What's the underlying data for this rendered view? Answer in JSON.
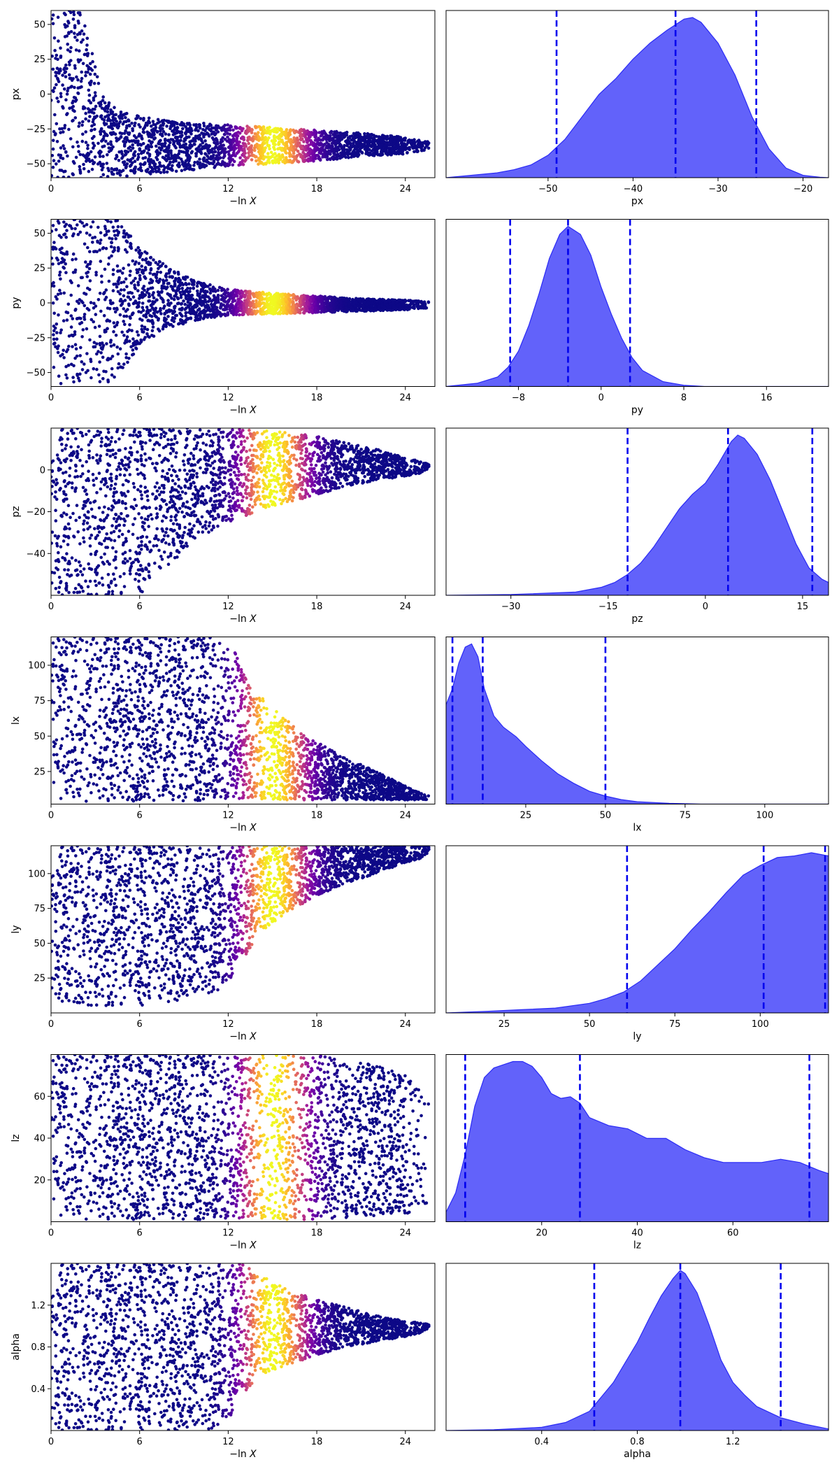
{
  "colors": {
    "trace_cmap": [
      "#0d0887",
      "#3b049a",
      "#6a00a8",
      "#9c179e",
      "#c43e7f",
      "#e16462",
      "#f89540",
      "#fdc527",
      "#f0f921"
    ],
    "kde_fill": "#5a5afa",
    "kde_line": "#2a2af5",
    "quantile_line": "#0000ee",
    "axis": "#000000"
  },
  "chart_data": [
    {
      "type": "scatter",
      "name": "trace-px",
      "xlabel": "−ln X",
      "ylabel": "px",
      "xlim": [
        0,
        26
      ],
      "ylim": [
        -60,
        60
      ],
      "xticks": [
        0,
        6,
        12,
        18,
        24
      ],
      "yticks": [
        -50,
        -25,
        0,
        25,
        50
      ],
      "color_scale": "plasma, peak importance near -lnX = 15",
      "envelope": [
        [
          0,
          -60,
          60
        ],
        [
          2,
          -60,
          60
        ],
        [
          2.8,
          -60,
          30
        ],
        [
          3.5,
          -60,
          0
        ],
        [
          4.5,
          -60,
          -12
        ],
        [
          6,
          -58,
          -16
        ],
        [
          9,
          -55,
          -20
        ],
        [
          12,
          -52,
          -22
        ],
        [
          15,
          -50,
          -24
        ],
        [
          18,
          -48,
          -26
        ],
        [
          21,
          -45,
          -28
        ],
        [
          24,
          -43,
          -31
        ],
        [
          25.5,
          -40,
          -34
        ]
      ]
    },
    {
      "type": "area",
      "name": "posterior-px",
      "xlabel": "px",
      "xlim": [
        -62,
        -17
      ],
      "xticks": [
        -50,
        -40,
        -30,
        -20
      ],
      "quantiles": [
        -49,
        -35,
        -25.5
      ],
      "x": [
        -62,
        -56,
        -54,
        -52,
        -50,
        -48,
        -46,
        -44,
        -42,
        -40,
        -38,
        -36,
        -34,
        -33,
        -32,
        -30,
        -28,
        -26,
        -24,
        -22,
        -20,
        -18,
        -17
      ],
      "density": [
        0,
        0.03,
        0.05,
        0.08,
        0.14,
        0.24,
        0.38,
        0.52,
        0.62,
        0.74,
        0.84,
        0.92,
        0.99,
        1.0,
        0.97,
        0.84,
        0.64,
        0.38,
        0.18,
        0.06,
        0.015,
        0.003,
        0
      ]
    },
    {
      "type": "scatter",
      "name": "trace-py",
      "xlabel": "−ln X",
      "ylabel": "py",
      "xlim": [
        0,
        26
      ],
      "ylim": [
        -60,
        60
      ],
      "xticks": [
        0,
        6,
        12,
        18,
        24
      ],
      "yticks": [
        -50,
        -25,
        0,
        25,
        50
      ],
      "color_scale": "plasma, peak importance near -lnX = 15",
      "envelope": [
        [
          0,
          -60,
          60
        ],
        [
          3,
          -60,
          60
        ],
        [
          4.5,
          -55,
          60
        ],
        [
          6,
          -30,
          40
        ],
        [
          8,
          -18,
          25
        ],
        [
          10,
          -12,
          15
        ],
        [
          12,
          -9,
          10
        ],
        [
          15,
          -8,
          7
        ],
        [
          18,
          -7,
          5
        ],
        [
          21,
          -6,
          3
        ],
        [
          24,
          -5,
          2
        ],
        [
          25.5,
          -4,
          1
        ]
      ]
    },
    {
      "type": "area",
      "name": "posterior-py",
      "xlabel": "py",
      "xlim": [
        -15,
        22
      ],
      "xticks": [
        -8,
        0,
        8,
        16
      ],
      "quantiles": [
        -8.8,
        -3.2,
        2.8
      ],
      "x": [
        -15,
        -12,
        -10,
        -9,
        -8,
        -7,
        -6,
        -5,
        -4,
        -3.2,
        -2,
        -1,
        0,
        1,
        2,
        3,
        4,
        6,
        8,
        10,
        22
      ],
      "density": [
        0,
        0.02,
        0.06,
        0.12,
        0.22,
        0.38,
        0.58,
        0.8,
        0.95,
        1.0,
        0.95,
        0.82,
        0.62,
        0.45,
        0.3,
        0.18,
        0.1,
        0.03,
        0.008,
        0,
        0
      ]
    },
    {
      "type": "scatter",
      "name": "trace-pz",
      "xlabel": "−ln X",
      "ylabel": "pz",
      "xlim": [
        0,
        26
      ],
      "ylim": [
        -60,
        20
      ],
      "xticks": [
        0,
        6,
        12,
        18,
        24
      ],
      "yticks": [
        -40,
        -20,
        0
      ],
      "color_scale": "plasma, peak importance near -lnX = 15",
      "envelope": [
        [
          0,
          -60,
          20
        ],
        [
          6,
          -60,
          20
        ],
        [
          7,
          -52,
          20
        ],
        [
          8,
          -45,
          20
        ],
        [
          10,
          -33,
          20
        ],
        [
          12,
          -25,
          20
        ],
        [
          14,
          -20,
          19
        ],
        [
          16,
          -16,
          18
        ],
        [
          18,
          -12,
          16
        ],
        [
          20,
          -8,
          13
        ],
        [
          22,
          -5,
          10
        ],
        [
          24,
          -3,
          6
        ],
        [
          25.5,
          -1,
          3
        ]
      ]
    },
    {
      "type": "area",
      "name": "posterior-pz",
      "xlabel": "pz",
      "xlim": [
        -40,
        19
      ],
      "xticks": [
        -30,
        -15,
        0,
        15
      ],
      "quantiles": [
        -12,
        3.5,
        16.5
      ],
      "x": [
        -40,
        -30,
        -20,
        -16,
        -14,
        -12,
        -10,
        -8,
        -6,
        -4,
        -2,
        0,
        2,
        4,
        5,
        6,
        8,
        10,
        12,
        14,
        16,
        18,
        19
      ],
      "density": [
        0,
        0.005,
        0.02,
        0.05,
        0.08,
        0.13,
        0.2,
        0.3,
        0.42,
        0.54,
        0.63,
        0.7,
        0.82,
        0.96,
        1.0,
        0.98,
        0.88,
        0.72,
        0.52,
        0.32,
        0.17,
        0.1,
        0.08
      ]
    },
    {
      "type": "scatter",
      "name": "trace-lx",
      "xlabel": "−ln X",
      "ylabel": "lx",
      "xlim": [
        0,
        26
      ],
      "ylim": [
        2,
        120
      ],
      "xticks": [
        0,
        6,
        12,
        18,
        24
      ],
      "yticks": [
        25,
        50,
        75,
        100
      ],
      "color_scale": "plasma, peak importance near -lnX = 15",
      "envelope": [
        [
          0,
          4,
          120
        ],
        [
          9,
          4,
          120
        ],
        [
          11,
          5,
          120
        ],
        [
          12.5,
          5,
          110
        ],
        [
          13.5,
          5,
          85
        ],
        [
          15,
          5,
          70
        ],
        [
          17,
          5,
          52
        ],
        [
          19,
          5,
          40
        ],
        [
          21,
          5,
          30
        ],
        [
          23,
          5,
          20
        ],
        [
          24.5,
          5,
          12
        ],
        [
          25.5,
          5,
          8
        ]
      ]
    },
    {
      "type": "area",
      "name": "posterior-lx",
      "xlabel": "lx",
      "xlim": [
        0,
        120
      ],
      "xticks": [
        25,
        50,
        75,
        100
      ],
      "quantiles": [
        2,
        11.5,
        50
      ],
      "x": [
        0,
        2,
        4,
        6,
        8,
        10,
        12,
        15,
        18,
        22,
        25,
        30,
        35,
        40,
        45,
        50,
        55,
        60,
        70,
        80,
        120
      ],
      "density": [
        0.62,
        0.72,
        0.88,
        0.98,
        1.0,
        0.92,
        0.72,
        0.55,
        0.48,
        0.42,
        0.36,
        0.27,
        0.19,
        0.13,
        0.08,
        0.05,
        0.028,
        0.015,
        0.005,
        0,
        0
      ]
    },
    {
      "type": "scatter",
      "name": "trace-ly",
      "xlabel": "−ln X",
      "ylabel": "ly",
      "xlim": [
        0,
        26
      ],
      "ylim": [
        0,
        120
      ],
      "xticks": [
        0,
        6,
        12,
        18,
        24
      ],
      "yticks": [
        25,
        50,
        75,
        100
      ],
      "color_scale": "plasma, peak importance near -lnX = 15",
      "envelope": [
        [
          0,
          10,
          120
        ],
        [
          2,
          5,
          120
        ],
        [
          6,
          5,
          120
        ],
        [
          8,
          8,
          120
        ],
        [
          10,
          12,
          120
        ],
        [
          11.5,
          15,
          120
        ],
        [
          12.5,
          30,
          120
        ],
        [
          14,
          55,
          120
        ],
        [
          16,
          72,
          120
        ],
        [
          18,
          84,
          120
        ],
        [
          20,
          93,
          120
        ],
        [
          22,
          100,
          120
        ],
        [
          24,
          108,
          120
        ],
        [
          25.5,
          112,
          120
        ]
      ]
    },
    {
      "type": "area",
      "name": "posterior-ly",
      "xlabel": "ly",
      "xlim": [
        8,
        120
      ],
      "xticks": [
        25,
        50,
        75,
        100
      ],
      "quantiles": [
        61,
        101,
        119
      ],
      "x": [
        8,
        20,
        30,
        40,
        50,
        55,
        60,
        65,
        70,
        75,
        80,
        85,
        90,
        95,
        100,
        105,
        110,
        115,
        120
      ],
      "density": [
        0,
        0.01,
        0.02,
        0.03,
        0.06,
        0.09,
        0.13,
        0.2,
        0.3,
        0.4,
        0.52,
        0.63,
        0.75,
        0.86,
        0.92,
        0.97,
        0.98,
        1.0,
        0.98
      ]
    },
    {
      "type": "scatter",
      "name": "trace-lz",
      "xlabel": "−ln X",
      "ylabel": "lz",
      "xlim": [
        0,
        26
      ],
      "ylim": [
        0,
        80
      ],
      "xticks": [
        0,
        6,
        12,
        18,
        24
      ],
      "yticks": [
        20,
        40,
        60
      ],
      "color_scale": "plasma, peak importance near -lnX = 15",
      "envelope": [
        [
          0,
          2,
          80
        ],
        [
          3,
          1,
          80
        ],
        [
          12,
          1,
          80
        ],
        [
          18,
          1,
          80
        ],
        [
          20,
          2,
          78
        ],
        [
          22,
          3,
          75
        ],
        [
          24,
          4,
          70
        ],
        [
          25.5,
          5,
          60
        ]
      ]
    },
    {
      "type": "area",
      "name": "posterior-lz",
      "xlabel": "lz",
      "xlim": [
        0,
        80
      ],
      "xticks": [
        20,
        40,
        60
      ],
      "quantiles": [
        4,
        28,
        76
      ],
      "x": [
        0,
        2,
        4,
        6,
        8,
        10,
        12,
        14,
        16,
        18,
        20,
        22,
        24,
        26,
        28,
        30,
        34,
        38,
        42,
        46,
        50,
        54,
        58,
        62,
        66,
        70,
        74,
        78,
        80
      ],
      "density": [
        0.06,
        0.18,
        0.42,
        0.72,
        0.9,
        0.96,
        0.98,
        1.0,
        1.0,
        0.97,
        0.9,
        0.8,
        0.77,
        0.78,
        0.74,
        0.65,
        0.6,
        0.58,
        0.52,
        0.52,
        0.45,
        0.4,
        0.37,
        0.37,
        0.37,
        0.39,
        0.37,
        0.32,
        0.3
      ]
    },
    {
      "type": "scatter",
      "name": "trace-alpha",
      "xlabel": "−ln X",
      "ylabel": "alpha",
      "xlim": [
        0,
        26
      ],
      "ylim": [
        0,
        1.6
      ],
      "xticks": [
        0,
        6,
        12,
        18,
        24
      ],
      "yticks": [
        0.4,
        0.8,
        1.2
      ],
      "color_scale": "plasma, peak importance near -lnX = 15",
      "envelope": [
        [
          0,
          0,
          1.6
        ],
        [
          11,
          0,
          1.6
        ],
        [
          12,
          0.1,
          1.6
        ],
        [
          13,
          0.35,
          1.6
        ],
        [
          14,
          0.5,
          1.5
        ],
        [
          16,
          0.62,
          1.35
        ],
        [
          18,
          0.72,
          1.25
        ],
        [
          20,
          0.8,
          1.18
        ],
        [
          22,
          0.85,
          1.1
        ],
        [
          24,
          0.9,
          1.05
        ],
        [
          25.5,
          0.95,
          1.02
        ]
      ]
    },
    {
      "type": "area",
      "name": "posterior-alpha",
      "xlabel": "alpha",
      "xlim": [
        0,
        1.6
      ],
      "xticks": [
        0.4,
        0.8,
        1.2
      ],
      "quantiles": [
        0.62,
        0.98,
        1.4
      ],
      "x": [
        0,
        0.2,
        0.4,
        0.5,
        0.6,
        0.7,
        0.8,
        0.85,
        0.9,
        0.95,
        0.98,
        1.0,
        1.05,
        1.1,
        1.15,
        1.2,
        1.25,
        1.3,
        1.4,
        1.5,
        1.6
      ],
      "density": [
        0,
        0.005,
        0.02,
        0.05,
        0.12,
        0.3,
        0.55,
        0.7,
        0.84,
        0.95,
        1.0,
        0.98,
        0.86,
        0.66,
        0.44,
        0.3,
        0.22,
        0.15,
        0.08,
        0.04,
        0.01
      ]
    }
  ]
}
